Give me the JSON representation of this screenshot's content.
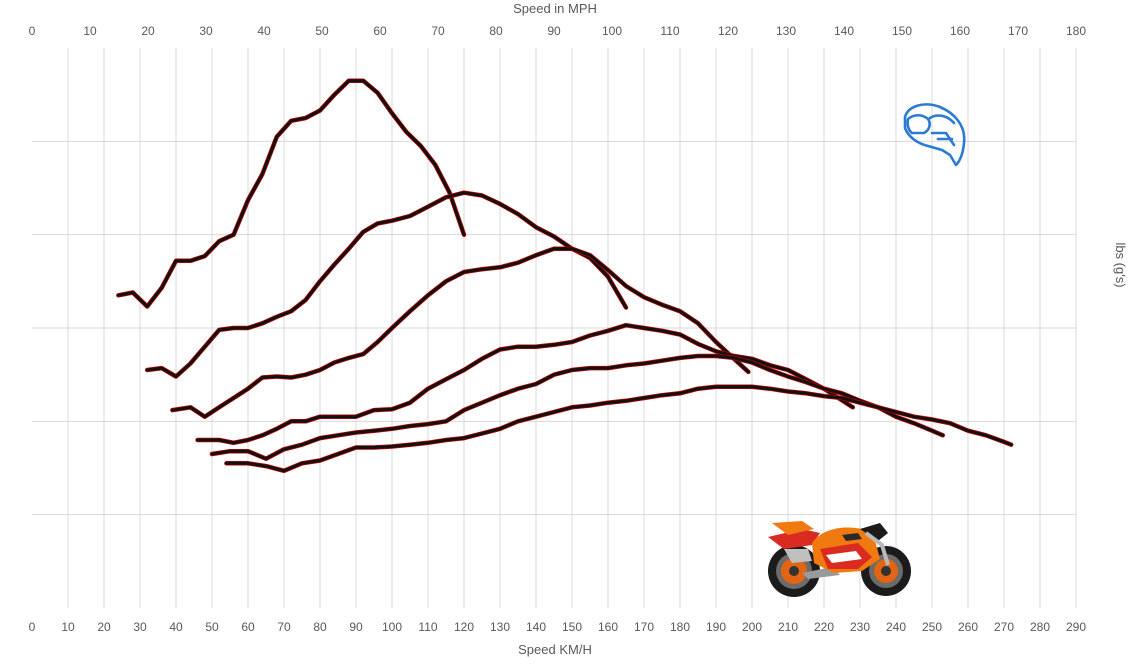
{
  "chart_data": {
    "type": "line",
    "top_axis": {
      "title": "Speed in MPH",
      "ticks": [
        0,
        10,
        20,
        30,
        40,
        50,
        60,
        70,
        80,
        90,
        100,
        110,
        120,
        130,
        140,
        150,
        160,
        170,
        180
      ],
      "range": [
        0,
        180
      ]
    },
    "bottom_axis": {
      "title": "Speed KM/H",
      "ticks": [
        0,
        10,
        20,
        30,
        40,
        50,
        60,
        70,
        80,
        90,
        100,
        110,
        120,
        130,
        140,
        150,
        160,
        170,
        180,
        190,
        200,
        210,
        220,
        230,
        240,
        250,
        260,
        270,
        280,
        290
      ],
      "range": [
        0,
        290
      ]
    },
    "right_axis": {
      "title": "lbs (g's)"
    },
    "y_range": [
      0,
      6
    ],
    "horizontal_gridlines": [
      1,
      2,
      3,
      4,
      5
    ],
    "grid": true,
    "legend": "none",
    "series": [
      {
        "x": [
          24,
          28,
          32,
          36,
          40,
          44,
          48,
          52,
          56,
          60,
          64,
          68,
          72,
          76,
          80,
          84,
          88,
          92,
          96,
          100,
          104,
          108,
          112,
          116,
          120
        ],
        "y": [
          3.35,
          3.38,
          3.23,
          3.43,
          3.72,
          3.72,
          3.77,
          3.93,
          4.0,
          4.37,
          4.65,
          5.05,
          5.22,
          5.25,
          5.33,
          5.5,
          5.65,
          5.65,
          5.52,
          5.3,
          5.1,
          4.95,
          4.75,
          4.45,
          4.0
        ]
      },
      {
        "x": [
          32,
          36,
          40,
          44,
          48,
          52,
          56,
          60,
          64,
          68,
          72,
          76,
          80,
          84,
          88,
          92,
          96,
          100,
          105,
          110,
          115,
          120,
          125,
          130,
          135,
          140,
          145,
          150,
          155,
          160,
          165
        ],
        "y": [
          2.55,
          2.57,
          2.48,
          2.62,
          2.8,
          2.98,
          3.0,
          3.0,
          3.05,
          3.12,
          3.18,
          3.3,
          3.5,
          3.68,
          3.85,
          4.03,
          4.12,
          4.15,
          4.2,
          4.3,
          4.4,
          4.45,
          4.42,
          4.33,
          4.22,
          4.08,
          3.98,
          3.85,
          3.75,
          3.55,
          3.22
        ]
      },
      {
        "x": [
          39,
          44,
          48,
          52,
          56,
          60,
          64,
          68,
          72,
          76,
          80,
          84,
          88,
          92,
          96,
          100,
          105,
          110,
          115,
          120,
          125,
          130,
          135,
          140,
          145,
          150,
          155,
          160,
          165,
          170,
          175,
          180,
          185,
          190,
          195,
          199
        ],
        "y": [
          2.12,
          2.15,
          2.05,
          2.15,
          2.25,
          2.35,
          2.47,
          2.48,
          2.47,
          2.5,
          2.55,
          2.63,
          2.68,
          2.72,
          2.85,
          3.0,
          3.18,
          3.35,
          3.5,
          3.6,
          3.63,
          3.65,
          3.7,
          3.78,
          3.85,
          3.85,
          3.78,
          3.62,
          3.45,
          3.33,
          3.25,
          3.18,
          3.05,
          2.85,
          2.67,
          2.53
        ]
      },
      {
        "x": [
          46,
          52,
          56,
          60,
          64,
          68,
          72,
          76,
          80,
          85,
          90,
          95,
          100,
          105,
          110,
          115,
          120,
          125,
          130,
          135,
          140,
          145,
          150,
          155,
          160,
          165,
          170,
          175,
          180,
          185,
          190,
          195,
          200,
          205,
          210,
          215,
          220,
          224,
          228
        ],
        "y": [
          1.8,
          1.8,
          1.77,
          1.8,
          1.85,
          1.92,
          2.0,
          2.0,
          2.05,
          2.05,
          2.05,
          2.12,
          2.13,
          2.2,
          2.35,
          2.45,
          2.55,
          2.67,
          2.77,
          2.8,
          2.8,
          2.82,
          2.85,
          2.92,
          2.97,
          3.03,
          3.0,
          2.97,
          2.93,
          2.83,
          2.75,
          2.7,
          2.67,
          2.6,
          2.55,
          2.45,
          2.35,
          2.25,
          2.15
        ]
      },
      {
        "x": [
          50,
          55,
          60,
          65,
          70,
          75,
          80,
          85,
          90,
          95,
          100,
          105,
          110,
          115,
          120,
          125,
          130,
          135,
          140,
          145,
          150,
          155,
          160,
          165,
          170,
          175,
          180,
          185,
          190,
          195,
          200,
          205,
          210,
          215,
          220,
          225,
          230,
          235,
          240,
          245,
          250,
          253
        ],
        "y": [
          1.65,
          1.68,
          1.68,
          1.6,
          1.7,
          1.75,
          1.82,
          1.85,
          1.88,
          1.9,
          1.92,
          1.95,
          1.97,
          2.0,
          2.12,
          2.2,
          2.28,
          2.35,
          2.4,
          2.5,
          2.55,
          2.57,
          2.57,
          2.6,
          2.62,
          2.65,
          2.68,
          2.7,
          2.7,
          2.68,
          2.63,
          2.55,
          2.48,
          2.42,
          2.35,
          2.3,
          2.22,
          2.15,
          2.05,
          1.98,
          1.9,
          1.85
        ]
      },
      {
        "x": [
          54,
          60,
          65,
          70,
          75,
          80,
          85,
          90,
          95,
          100,
          105,
          110,
          115,
          120,
          125,
          130,
          135,
          140,
          145,
          150,
          155,
          160,
          165,
          170,
          175,
          180,
          185,
          190,
          195,
          200,
          205,
          210,
          215,
          220,
          225,
          230,
          235,
          240,
          245,
          250,
          255,
          260,
          265,
          270,
          272
        ],
        "y": [
          1.55,
          1.55,
          1.52,
          1.47,
          1.55,
          1.58,
          1.65,
          1.72,
          1.72,
          1.73,
          1.75,
          1.77,
          1.8,
          1.82,
          1.87,
          1.92,
          2.0,
          2.05,
          2.1,
          2.15,
          2.17,
          2.2,
          2.22,
          2.25,
          2.28,
          2.3,
          2.35,
          2.37,
          2.37,
          2.37,
          2.35,
          2.32,
          2.3,
          2.27,
          2.25,
          2.2,
          2.15,
          2.1,
          2.05,
          2.02,
          1.98,
          1.9,
          1.85,
          1.78,
          1.75
        ]
      }
    ]
  },
  "decor": {
    "helmet_icon": "helmet-icon",
    "bike_image": "motorcycle-image",
    "bike_colors": {
      "orange": "#f07a10",
      "red": "#d92b1f",
      "black": "#1b1b1b",
      "silver": "#b9b9b9"
    },
    "helmet_color": "#2b7bd4",
    "line_color": "#111111",
    "line_underlay_color": "#c00000"
  }
}
